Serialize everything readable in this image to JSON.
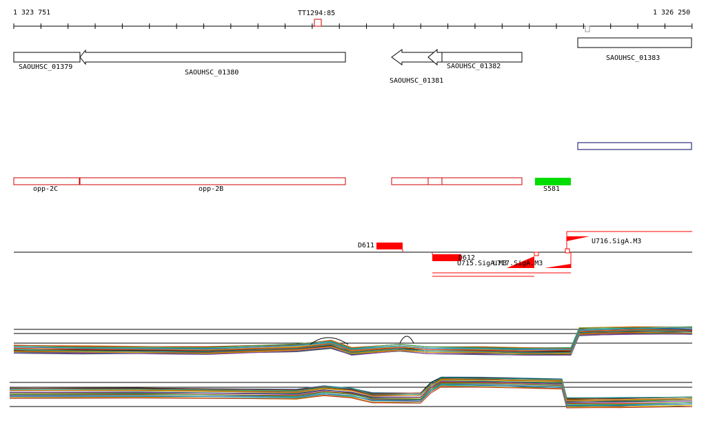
{
  "axis": {
    "start_label": "1 323 751",
    "end_label": "1 326 250",
    "marker_label": "TT1294:85"
  },
  "genes": [
    {
      "label": "SAOUHSC_01379"
    },
    {
      "label": "SAOUHSC_01380"
    },
    {
      "label": "SAOUHSC_01381"
    },
    {
      "label": "SAOUHSC_01382"
    },
    {
      "label": "SAOUHSC_01383"
    }
  ],
  "operons": [
    {
      "label": "opp-2C"
    },
    {
      "label": "opp-2B"
    },
    {
      "label": "S581"
    }
  ],
  "features": [
    {
      "label": "D611"
    },
    {
      "label": "D612"
    },
    {
      "label": "U715.SigA.M3"
    },
    {
      "label": "U717.SigA.M3"
    },
    {
      "label": "U716.SigA.M3"
    }
  ],
  "colors": {
    "axis": "#000000",
    "gene_outline": "#000000",
    "operon_outline": "#cc0000",
    "feature_fill": "#ff0000",
    "s581_fill": "#00dd00",
    "box_blue": "#000066"
  }
}
